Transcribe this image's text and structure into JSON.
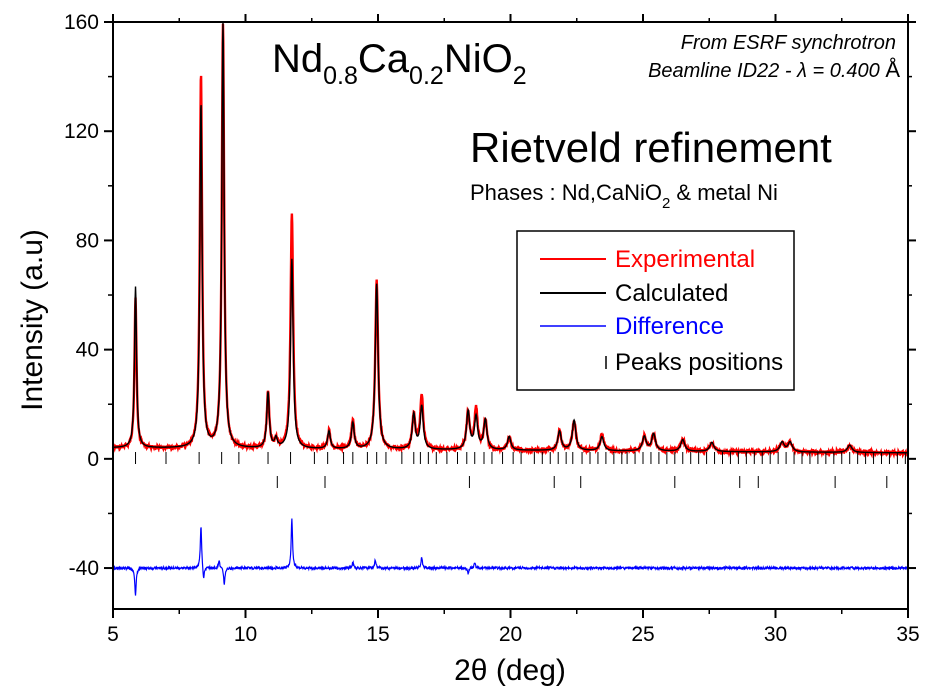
{
  "chart_data": {
    "type": "line",
    "title": "Nd0.8Ca0.2NiO2",
    "title_parts": {
      "el1": "Nd",
      "sub1": "0.8",
      "el2": "Ca",
      "sub2": "0.2",
      "el3": "NiO",
      "sub3": "2"
    },
    "source": {
      "line1": "From ESRF synchrotron",
      "line2_text": "Beamline ID22 - ",
      "line2_lambda": "λ",
      "line2_value": " = 0.400 ",
      "line2_unit": "Å"
    },
    "heading": "Rietveld refinement",
    "phases": {
      "prefix": "Phases : Nd,CaNiO",
      "sub": "2",
      "suffix": " & metal Ni"
    },
    "xlabel": "2θ (deg)",
    "ylabel": "Intensity (a.u)",
    "xlim": [
      5,
      35
    ],
    "ylim": [
      -55,
      160
    ],
    "x_ticks": [
      5,
      10,
      15,
      20,
      25,
      30,
      35
    ],
    "y_ticks": [
      -40,
      0,
      40,
      80,
      120,
      160
    ],
    "grid": false,
    "legend_placement": "center-right",
    "legend": [
      {
        "label": "Experimental",
        "color": "#ff0000",
        "marker": "line"
      },
      {
        "label": "Calculated",
        "color": "#000000",
        "marker": "line"
      },
      {
        "label": "Difference",
        "color": "#0000ff",
        "marker": "line"
      },
      {
        "label": "Peaks positions",
        "color": "#000000",
        "marker": "tick"
      }
    ],
    "background_level": 4,
    "difference_offset": -40,
    "peaks": [
      {
        "x": 5.85,
        "calc": 63,
        "exp": 59
      },
      {
        "x": 8.32,
        "calc": 130,
        "exp": 141
      },
      {
        "x": 9.15,
        "calc": 160,
        "exp": 160
      },
      {
        "x": 10.85,
        "calc": 24,
        "exp": 24
      },
      {
        "x": 11.15,
        "calc": 7,
        "exp": 7
      },
      {
        "x": 11.75,
        "calc": 73,
        "exp": 90
      },
      {
        "x": 13.15,
        "calc": 10,
        "exp": 10
      },
      {
        "x": 14.05,
        "calc": 13,
        "exp": 14
      },
      {
        "x": 14.95,
        "calc": 64,
        "exp": 65
      },
      {
        "x": 16.35,
        "calc": 16,
        "exp": 16
      },
      {
        "x": 16.65,
        "calc": 19,
        "exp": 23
      },
      {
        "x": 18.4,
        "calc": 17,
        "exp": 17
      },
      {
        "x": 18.7,
        "calc": 15,
        "exp": 18
      },
      {
        "x": 19.05,
        "calc": 14,
        "exp": 14
      },
      {
        "x": 19.95,
        "calc": 8,
        "exp": 8
      },
      {
        "x": 21.85,
        "calc": 10,
        "exp": 10
      },
      {
        "x": 22.4,
        "calc": 14,
        "exp": 14
      },
      {
        "x": 23.45,
        "calc": 8,
        "exp": 9
      },
      {
        "x": 25.05,
        "calc": 8,
        "exp": 8
      },
      {
        "x": 25.4,
        "calc": 9,
        "exp": 9
      },
      {
        "x": 26.5,
        "calc": 7,
        "exp": 7
      },
      {
        "x": 27.6,
        "calc": 6,
        "exp": 6
      },
      {
        "x": 30.25,
        "calc": 6,
        "exp": 6
      },
      {
        "x": 30.55,
        "calc": 6,
        "exp": 6
      },
      {
        "x": 32.8,
        "calc": 5,
        "exp": 5
      }
    ],
    "difference_spikes": [
      {
        "x": 5.85,
        "dy": -10
      },
      {
        "x": 8.32,
        "dy": 16
      },
      {
        "x": 8.42,
        "dy": -5
      },
      {
        "x": 9.0,
        "dy": 3
      },
      {
        "x": 9.2,
        "dy": -6
      },
      {
        "x": 11.75,
        "dy": 18
      },
      {
        "x": 14.05,
        "dy": 2
      },
      {
        "x": 14.9,
        "dy": 3
      },
      {
        "x": 16.65,
        "dy": 4
      },
      {
        "x": 18.4,
        "dy": -2
      },
      {
        "x": 18.65,
        "dy": 2
      }
    ],
    "peak_positions_phase1": [
      5.85,
      7.0,
      8.25,
      9.1,
      9.75,
      10.85,
      11.7,
      12.6,
      13.1,
      13.7,
      14.05,
      14.6,
      14.95,
      15.3,
      15.9,
      16.35,
      16.6,
      16.9,
      17.2,
      17.6,
      18.0,
      18.35,
      18.65,
      19.0,
      19.3,
      19.7,
      20.1,
      20.4,
      20.9,
      21.2,
      21.5,
      21.8,
      22.1,
      22.35,
      22.7,
      23.0,
      23.3,
      23.6,
      23.9,
      24.2,
      24.4,
      24.7,
      25.0,
      25.3,
      25.6,
      25.9,
      26.2,
      26.5,
      26.8,
      27.1,
      27.4,
      27.7,
      28.0,
      28.3,
      28.6,
      28.9,
      29.2,
      29.5,
      29.8,
      30.1,
      30.4,
      30.7,
      31.0,
      31.3,
      31.6,
      31.9,
      32.2,
      32.5,
      32.8,
      33.1,
      33.4,
      33.7,
      34.0,
      34.3,
      34.6,
      34.9
    ],
    "peak_positions_phase2": [
      11.2,
      13.0,
      18.45,
      21.65,
      22.65,
      26.2,
      28.65,
      29.35,
      32.25,
      34.2
    ]
  }
}
